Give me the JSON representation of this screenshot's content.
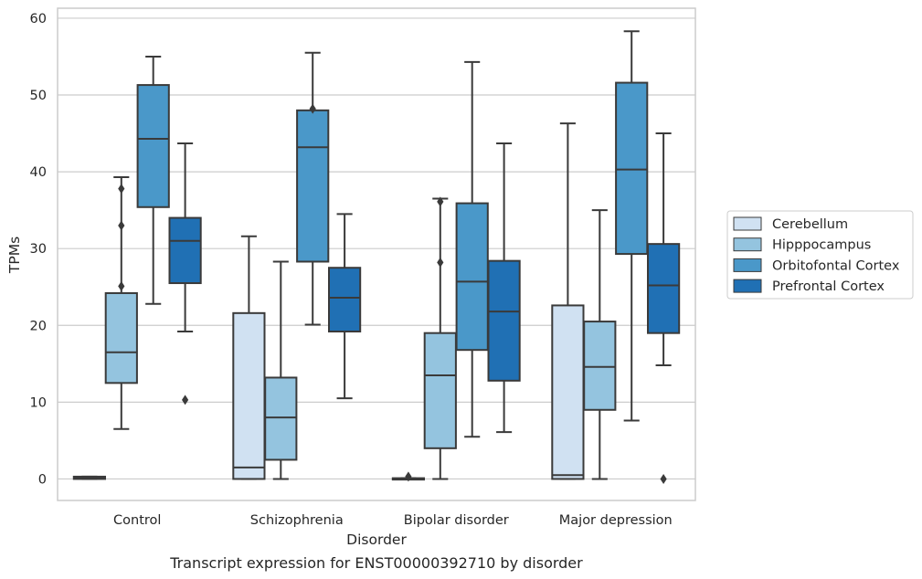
{
  "chart_data": {
    "type": "box",
    "caption": "Transcript expression for ENST00000392710 by disorder",
    "xlabel": "Disorder",
    "ylabel": "TPMs",
    "ylim": [
      -2.8,
      61.3
    ],
    "yticks": [
      0,
      10,
      20,
      30,
      40,
      50,
      60
    ],
    "grid": "horizontal",
    "legend_position": "right",
    "categories": [
      "Control",
      "Schizophrenia",
      "Bipolar disorder",
      "Major depression"
    ],
    "series": [
      {
        "name": "Cerebellum",
        "color": "#d0e1f2",
        "boxes": [
          {
            "whislo": 0,
            "q1": 0,
            "med": 0.1,
            "q3": 0.3,
            "whishi": 0.3,
            "fliers": []
          },
          {
            "whislo": 0,
            "q1": 0,
            "med": 1.5,
            "q3": 21.6,
            "whishi": 31.6,
            "fliers": []
          },
          {
            "whislo": 0,
            "q1": 0,
            "med": 0.05,
            "q3": 0.1,
            "whishi": 0.1,
            "fliers": [
              0.3
            ]
          },
          {
            "whislo": 0,
            "q1": 0,
            "med": 0.5,
            "q3": 22.6,
            "whishi": 46.3,
            "fliers": []
          }
        ]
      },
      {
        "name": "Hipppocampus",
        "color": "#94c4df",
        "boxes": [
          {
            "whislo": 6.5,
            "q1": 12.5,
            "med": 16.5,
            "q3": 24.2,
            "whishi": 39.3,
            "fliers": [
              25.1,
              33.0,
              37.8
            ]
          },
          {
            "whislo": 0,
            "q1": 2.5,
            "med": 8.0,
            "q3": 13.2,
            "whishi": 28.3,
            "fliers": []
          },
          {
            "whislo": 0,
            "q1": 4.0,
            "med": 13.5,
            "q3": 19.0,
            "whishi": 36.5,
            "fliers": [
              28.2,
              36.1
            ]
          },
          {
            "whislo": 0,
            "q1": 9.0,
            "med": 14.6,
            "q3": 20.5,
            "whishi": 35.0,
            "fliers": []
          }
        ]
      },
      {
        "name": "Orbitofontal Cortex",
        "color": "#4a98c9",
        "boxes": [
          {
            "whislo": 22.8,
            "q1": 35.4,
            "med": 44.3,
            "q3": 51.3,
            "whishi": 55.0,
            "fliers": []
          },
          {
            "whislo": 20.1,
            "q1": 28.3,
            "med": 43.2,
            "q3": 48.0,
            "whishi": 55.5,
            "fliers": [
              48.2
            ]
          },
          {
            "whislo": 5.5,
            "q1": 16.8,
            "med": 25.7,
            "q3": 35.9,
            "whishi": 54.3,
            "fliers": []
          },
          {
            "whislo": 7.6,
            "q1": 29.3,
            "med": 40.3,
            "q3": 51.6,
            "whishi": 58.3,
            "fliers": []
          }
        ]
      },
      {
        "name": "Prefrontal Cortex",
        "color": "#2070b4",
        "boxes": [
          {
            "whislo": 19.2,
            "q1": 25.5,
            "med": 31.0,
            "q3": 34.0,
            "whishi": 43.7,
            "fliers": [
              10.3
            ]
          },
          {
            "whislo": 10.5,
            "q1": 19.2,
            "med": 23.6,
            "q3": 27.5,
            "whishi": 34.5,
            "fliers": []
          },
          {
            "whislo": 6.1,
            "q1": 12.8,
            "med": 21.8,
            "q3": 28.4,
            "whishi": 43.7,
            "fliers": []
          },
          {
            "whislo": 14.8,
            "q1": 19.0,
            "med": 25.2,
            "q3": 30.6,
            "whishi": 45.0,
            "fliers": [
              0.0
            ]
          }
        ]
      }
    ]
  }
}
